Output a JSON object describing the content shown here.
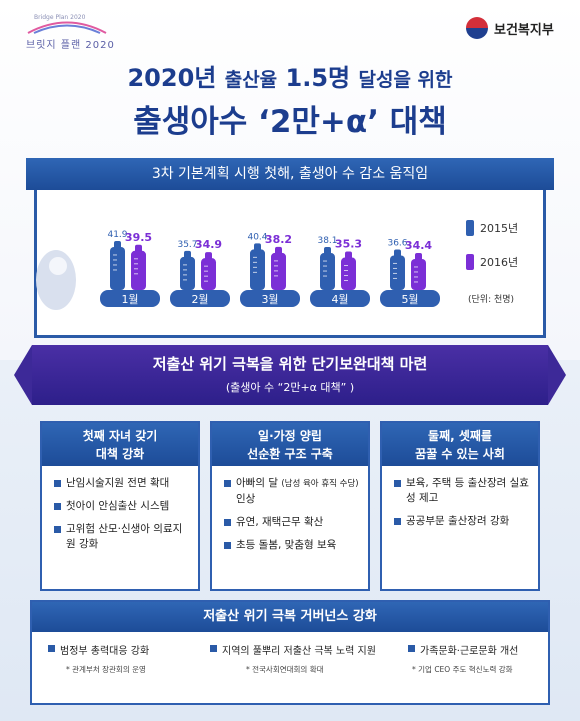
{
  "header": {
    "logo_left_sub": "Bridge Plan 2020",
    "logo_left_main": "브릿지 플랜 2020",
    "logo_right_name": "보건복지부"
  },
  "title": {
    "line1_year": "2020년",
    "line1_a": "출산율",
    "line1_rate": "1.5명",
    "line1_b": "달성을 위한",
    "line2": "출생아수 ‘2만+α’ 대책"
  },
  "chart_banner": "3차 기본계획 시행 첫해, 출생아 수 감소 움직임",
  "chart_data": {
    "type": "bar",
    "categories": [
      "1월",
      "2월",
      "3월",
      "4월",
      "5월"
    ],
    "series": [
      {
        "name": "2015년",
        "values": [
          41.9,
          35.7,
          40.4,
          38.1,
          36.6
        ]
      },
      {
        "name": "2016년",
        "values": [
          39.5,
          34.9,
          38.2,
          35.3,
          34.4
        ]
      }
    ],
    "unit_label": "(단위: 천명)",
    "series_colors": [
      "#2f5fb0",
      "#7b2fd6"
    ]
  },
  "mid_banner": {
    "line1": "저출산 위기 극복을 위한 단기보완대책 마련",
    "line2": "(출생아 수 “2만+α 대책” )"
  },
  "columns": [
    {
      "title_l1": "첫째 자녀 갖기",
      "title_l2": "대책 강화",
      "items": [
        "난임시술지원 전면 확대",
        "첫아이 안심출산 시스템",
        "고위험 산모·신생아 의료지원 강화"
      ]
    },
    {
      "title_l1": "일·가정 양립",
      "title_l2": "선순환 구조 구축",
      "items": [
        "아빠의 달",
        "(남성 육아 휴직 수당)",
        "인상",
        "유연, 재택근무 확산",
        "초등 돌봄, 맞춤형 보육"
      ]
    },
    {
      "title_l1": "둘째, 셋째를",
      "title_l2": "꿈꿀 수 있는 사회",
      "items": [
        "보육, 주택 등 출산장려 실효성 제고",
        "공공부문 출산장려 강화"
      ]
    }
  ],
  "governance": {
    "title": "저출산 위기 극복 거버넌스 강화",
    "items": [
      {
        "label": "범정부 총력대응 강화",
        "note": "* 관계부처 장관회의 운영"
      },
      {
        "label": "지역의 풀뿌리 저출산 극복 노력 지원",
        "note": "* 전국사회연대회의 확대"
      },
      {
        "label": "가족문화·근로문화 개선",
        "note": "* 기업 CEO 주도 혁신노력 강화"
      }
    ]
  }
}
